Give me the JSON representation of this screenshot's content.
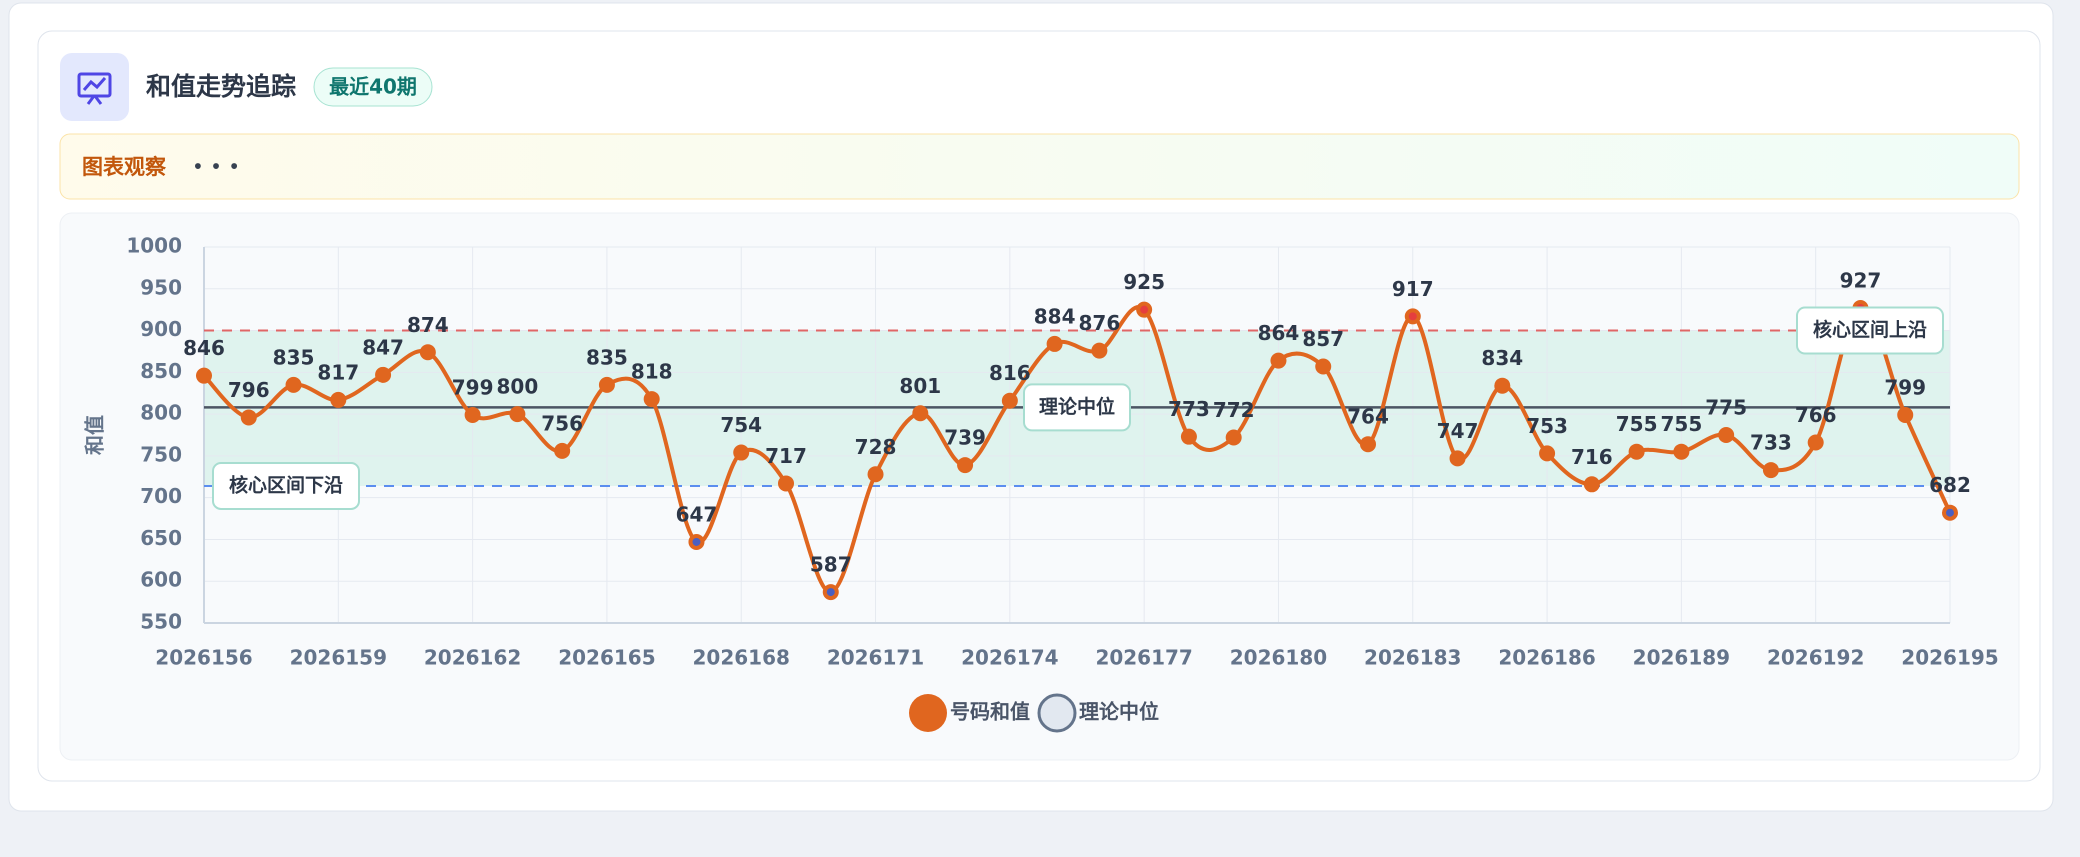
{
  "header": {
    "title": "和值走势追踪",
    "badge": "最近40期"
  },
  "notice": {
    "label": "图表观察",
    "text": "• • •"
  },
  "chart_data": {
    "type": "line",
    "x": [
      2026156,
      2026157,
      2026158,
      2026159,
      2026160,
      2026161,
      2026162,
      2026163,
      2026164,
      2026165,
      2026166,
      2026167,
      2026168,
      2026169,
      2026170,
      2026171,
      2026172,
      2026173,
      2026174,
      2026175,
      2026176,
      2026177,
      2026178,
      2026179,
      2026180,
      2026181,
      2026182,
      2026183,
      2026184,
      2026185,
      2026186,
      2026187,
      2026188,
      2026189,
      2026190,
      2026191,
      2026192,
      2026193,
      2026194,
      2026195
    ],
    "xlim": [
      2026156,
      2026195
    ],
    "xticks": [
      2026156,
      2026159,
      2026162,
      2026165,
      2026168,
      2026171,
      2026174,
      2026177,
      2026180,
      2026183,
      2026186,
      2026189,
      2026192,
      2026195
    ],
    "ylim": [
      550,
      1000
    ],
    "yticks": [
      550,
      600,
      650,
      700,
      750,
      800,
      850,
      900,
      950,
      1000
    ],
    "y_label": "和值",
    "grid": true,
    "series": [
      {
        "name": "号码和值",
        "color": "#e0661f",
        "values": [
          846,
          796,
          835,
          817,
          847,
          874,
          799,
          800,
          756,
          835,
          818,
          647,
          754,
          717,
          587,
          728,
          801,
          739,
          816,
          884,
          876,
          925,
          773,
          772,
          864,
          857,
          764,
          917,
          747,
          834,
          753,
          716,
          755,
          755,
          775,
          733,
          766,
          927,
          799,
          682
        ]
      }
    ],
    "reference_lines": [
      {
        "name": "核心区间上沿",
        "value": 900,
        "color": "#e06666"
      },
      {
        "name": "理论中位",
        "value": 808,
        "color": "#4b5563"
      },
      {
        "name": "核心区间下沿",
        "value": 714,
        "color": "#5b8def"
      }
    ],
    "band_color": "#dff3ee",
    "high_marker_color": "#e53e3e",
    "low_marker_color": "#4a5fc1"
  }
}
